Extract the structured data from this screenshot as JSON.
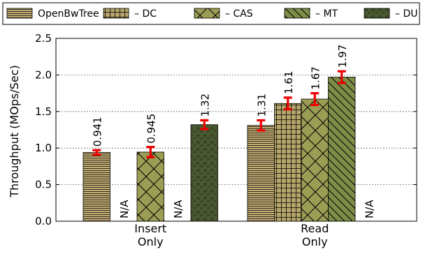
{
  "chart_data": {
    "type": "bar",
    "ylabel": "Throughput (MOps/Sec)",
    "ylim": [
      0,
      2.5
    ],
    "yticks": [
      0.0,
      0.5,
      1.0,
      1.5,
      2.0,
      2.5
    ],
    "ytick_labels": [
      "0.0",
      "0.5",
      "1.0",
      "1.5",
      "2.0",
      "2.5"
    ],
    "grid": "y-dotted",
    "legend_position": "top",
    "legend": [
      {
        "label": "OpenBwTree",
        "color": "#c4ad75",
        "pattern": "hlines"
      },
      {
        "label": "– DC",
        "color": "#b6a56b",
        "pattern": "grid"
      },
      {
        "label": "– CAS",
        "color": "#9c9d55",
        "pattern": "crosshatch"
      },
      {
        "label": "– MT",
        "color": "#7e8e48",
        "pattern": "diagonal"
      },
      {
        "label": "– DU",
        "color": "#4a5a30",
        "pattern": "stars"
      }
    ],
    "groups": [
      {
        "label_lines": [
          "Insert",
          "Only"
        ],
        "bars": [
          {
            "series": 0,
            "value": 0.941,
            "label": "0.941",
            "err": 0.03,
            "na": false
          },
          {
            "series": 1,
            "value": null,
            "label": "N/A",
            "na": true
          },
          {
            "series": 2,
            "value": 0.945,
            "label": "0.945",
            "err": 0.07,
            "na": false
          },
          {
            "series": 3,
            "value": null,
            "label": "N/A",
            "na": true
          },
          {
            "series": 4,
            "value": 1.32,
            "label": "1.32",
            "err": 0.06,
            "na": false
          }
        ]
      },
      {
        "label_lines": [
          "Read",
          "Only"
        ],
        "bars": [
          {
            "series": 0,
            "value": 1.31,
            "label": "1.31",
            "err": 0.07,
            "na": false
          },
          {
            "series": 1,
            "value": 1.61,
            "label": "1.61",
            "err": 0.08,
            "na": false
          },
          {
            "series": 2,
            "value": 1.67,
            "label": "1.67",
            "err": 0.08,
            "na": false
          },
          {
            "series": 3,
            "value": 1.97,
            "label": "1.97",
            "err": 0.08,
            "na": false
          },
          {
            "series": 4,
            "value": null,
            "label": "N/A",
            "na": true
          }
        ]
      }
    ]
  }
}
